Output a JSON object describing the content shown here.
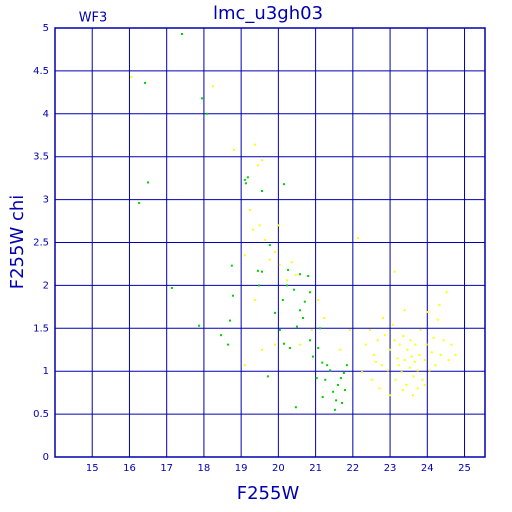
{
  "chart_data": {
    "type": "scatter",
    "title": "lmc_u3gh03",
    "subtitle": "WF3",
    "x_label": "F255W",
    "y_label": "F255W chi",
    "xlim": [
      14,
      25.55
    ],
    "ylim": [
      0,
      5
    ],
    "xticks": [
      15,
      16,
      17,
      18,
      19,
      20,
      21,
      22,
      23,
      24,
      25
    ],
    "yticks": [
      0,
      0.5,
      1,
      1.5,
      2,
      2.5,
      3,
      3.5,
      4,
      4.5,
      5
    ],
    "grid": true,
    "axis_color": "#0000b0",
    "series": [
      {
        "color": "#00d000",
        "x": [
          17.41,
          16.42,
          16.5,
          16.26,
          17.14,
          17.95,
          18.08,
          17.87,
          18.46,
          18.7,
          18.75,
          18.78,
          18.65,
          19.1,
          19.18,
          19.13,
          19.56,
          20.15,
          19.45,
          19.56,
          19.48,
          19.77,
          19.72,
          19.91,
          20.04,
          20.12,
          20.23,
          20.42,
          20.58,
          20.5,
          20.66,
          20.8,
          20.71,
          20.47,
          20.31,
          20.15,
          20.85,
          20.93,
          21.07,
          21.18,
          21.12,
          21.31,
          21.26,
          21.39,
          21.47,
          21.55,
          21.6,
          21.68,
          21.79,
          21.76,
          21.84,
          21.52,
          21.71,
          21.19,
          20.85,
          20.26,
          20.58,
          21.03
        ],
        "values": [
          4.93,
          4.36,
          3.2,
          2.96,
          1.97,
          4.18,
          4.0,
          1.53,
          1.42,
          1.59,
          2.23,
          1.88,
          1.31,
          3.23,
          3.26,
          3.19,
          3.1,
          3.18,
          2.17,
          2.16,
          2.0,
          2.47,
          0.94,
          1.68,
          1.48,
          1.83,
          2.0,
          1.95,
          2.13,
          1.52,
          1.62,
          2.11,
          1.81,
          0.58,
          1.27,
          1.32,
          1.36,
          1.17,
          1.27,
          1.1,
          1.5,
          1.07,
          0.9,
          1.01,
          0.76,
          0.66,
          0.84,
          0.92,
          0.78,
          0.98,
          1.07,
          0.55,
          0.63,
          0.7,
          1.92,
          2.18,
          1.71,
          0.92
        ]
      },
      {
        "color": "#ffff00",
        "x": [
          16.05,
          18.24,
          18.81,
          19.37,
          19.45,
          19.56,
          19.24,
          19.32,
          19.5,
          19.64,
          19.77,
          19.91,
          20.04,
          20.23,
          20.36,
          20.47,
          20.01,
          19.1,
          19.37,
          19.56,
          19.1,
          19.91,
          20.58,
          20.9,
          21.07,
          21.23,
          21.66,
          21.92,
          22.14,
          22.35,
          22.46,
          22.57,
          22.67,
          22.78,
          22.86,
          22.94,
          22.99,
          23.07,
          23.12,
          23.15,
          23.2,
          23.26,
          23.31,
          23.36,
          23.39,
          23.44,
          23.47,
          23.53,
          23.55,
          23.58,
          23.63,
          23.66,
          23.68,
          23.74,
          23.79,
          23.82,
          23.87,
          23.93,
          23.98,
          24.06,
          24.12,
          24.17,
          24.22,
          24.28,
          24.36,
          24.44,
          24.52,
          24.57,
          24.65,
          24.76,
          22.72,
          22.99,
          22.51,
          22.25,
          23.34,
          23.74,
          23.12,
          22.81,
          23.39,
          24.01,
          24.33,
          22.62,
          23.61,
          23.23,
          23.93
        ],
        "values": [
          4.43,
          4.32,
          3.58,
          3.64,
          3.4,
          3.46,
          2.88,
          2.65,
          2.7,
          2.53,
          2.3,
          2.39,
          2.24,
          2.06,
          2.27,
          2.12,
          2.7,
          2.35,
          1.83,
          1.25,
          1.07,
          1.31,
          1.31,
          1.48,
          1.83,
          1.62,
          1.25,
          1.48,
          2.55,
          1.31,
          1.48,
          1.19,
          1.36,
          1.07,
          1.42,
          1.01,
          1.25,
          1.54,
          2.16,
          0.9,
          1.15,
          1.31,
          0.99,
          1.41,
          1.13,
          0.84,
          1.25,
          1.04,
          1.36,
          1.17,
          0.94,
          1.11,
          1.31,
          1.01,
          1.19,
          1.48,
          0.9,
          1.13,
          1.31,
          1.01,
          1.22,
          1.39,
          1.07,
          1.6,
          1.19,
          1.36,
          1.92,
          1.13,
          1.31,
          1.19,
          0.8,
          0.72,
          0.9,
          0.99,
          0.78,
          0.8,
          1.36,
          1.62,
          1.71,
          1.69,
          1.77,
          1.11,
          0.72,
          1.07,
          0.84
        ]
      }
    ]
  }
}
